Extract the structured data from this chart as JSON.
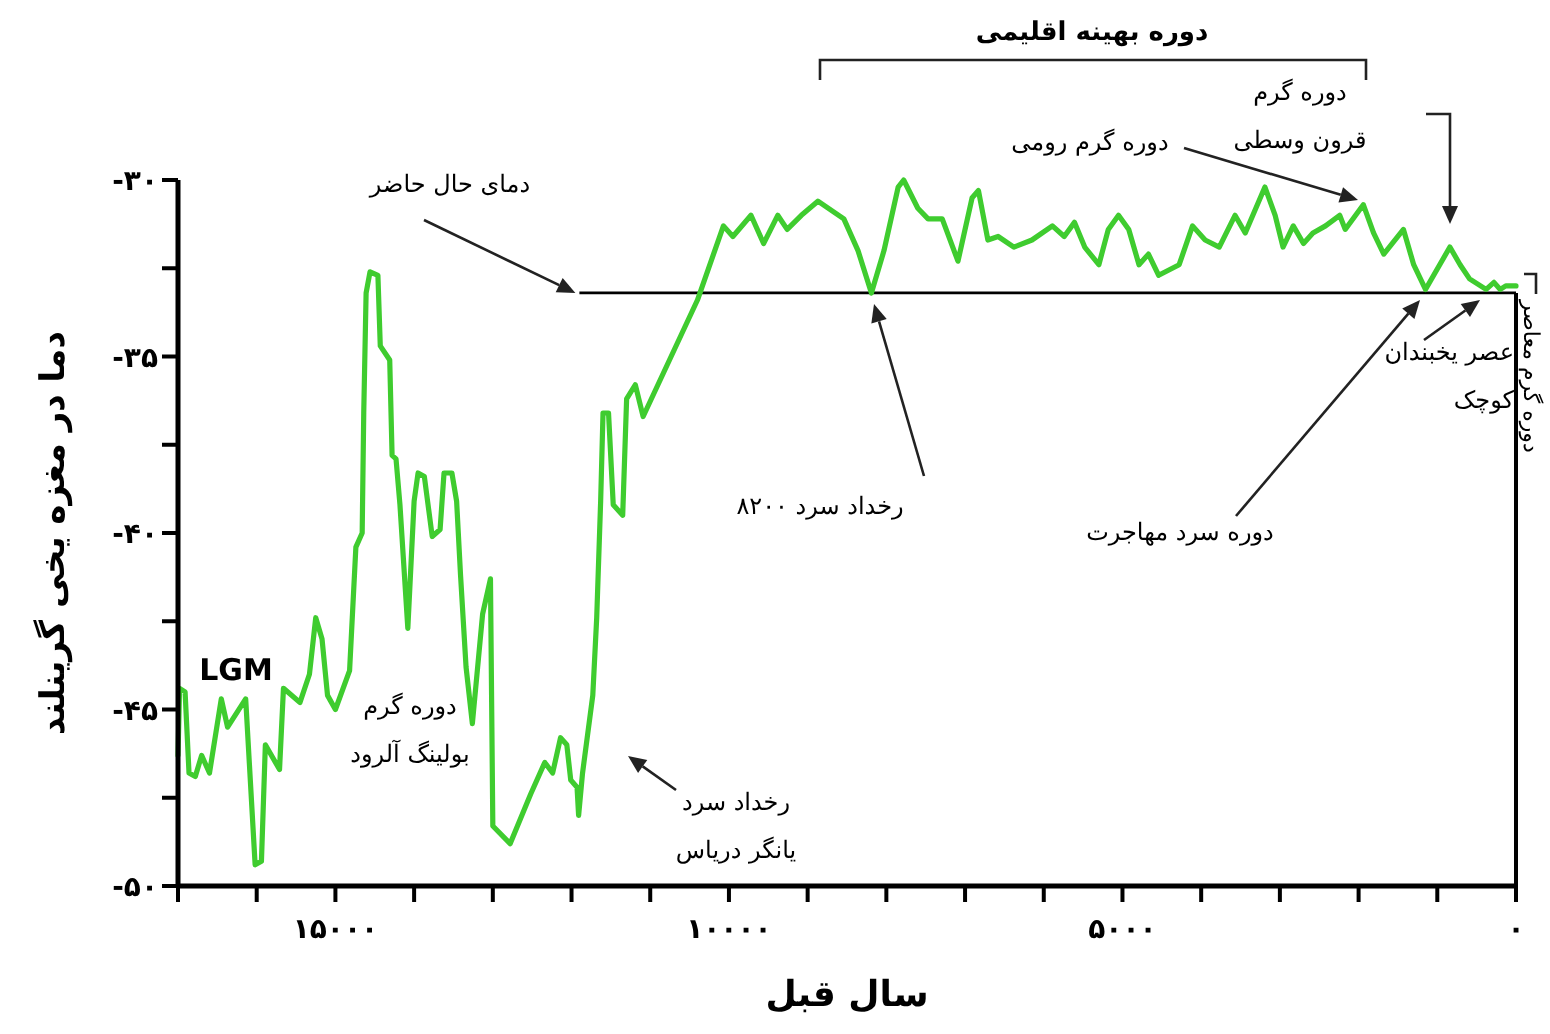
{
  "chart_data": {
    "type": "line",
    "xlabel": "سال قبل",
    "ylabel": "دما در مغزه یخی گرینلند",
    "xlim": [
      17000,
      0
    ],
    "ylim": [
      -50,
      -30
    ],
    "xticks": [
      {
        "value": 17000,
        "label": null
      },
      {
        "value": 16000,
        "label": null
      },
      {
        "value": 15000,
        "label": "۱۵۰۰۰"
      },
      {
        "value": 14000,
        "label": null
      },
      {
        "value": 13000,
        "label": null
      },
      {
        "value": 12000,
        "label": null
      },
      {
        "value": 11000,
        "label": null
      },
      {
        "value": 10000,
        "label": "۱۰۰۰۰"
      },
      {
        "value": 9000,
        "label": null
      },
      {
        "value": 8000,
        "label": null
      },
      {
        "value": 7000,
        "label": null
      },
      {
        "value": 6000,
        "label": null
      },
      {
        "value": 5000,
        "label": "۵۰۰۰"
      },
      {
        "value": 4000,
        "label": null
      },
      {
        "value": 3000,
        "label": null
      },
      {
        "value": 2000,
        "label": null
      },
      {
        "value": 1000,
        "label": null
      },
      {
        "value": 0,
        "label": "۰"
      }
    ],
    "yticks": [
      {
        "value": -30,
        "label": "-۳۰"
      },
      {
        "value": -32.5,
        "label": null
      },
      {
        "value": -35,
        "label": "-۳۵"
      },
      {
        "value": -37.5,
        "label": null
      },
      {
        "value": -40,
        "label": "-۴۰"
      },
      {
        "value": -42.5,
        "label": null
      },
      {
        "value": -45,
        "label": "-۴۵"
      },
      {
        "value": -47.5,
        "label": null
      },
      {
        "value": -50,
        "label": "-۵۰"
      }
    ],
    "grid": false,
    "marker": "none",
    "line_style": "solid",
    "ref_lines": [
      {
        "axis": "y",
        "value": -33.2,
        "label": "دمای حال حاضر",
        "color": "#000000"
      }
    ],
    "annotations": [
      "LGM",
      "دوره گرم\nبولینگ آلرود",
      "رخداد سرد\nیانگر دریاس",
      "رخداد سرد ۸۲۰۰",
      "دوره گرم رومی",
      "دوره گرم\nقرون وسطی",
      "دوره سرد مهاجرت",
      "عصر یخبندان\nکوچک",
      "دوره بهینه اقلیمی",
      "دوره گرم معاصر"
    ],
    "series": [
      {
        "color": "#3fcc2f",
        "x": [
          17000,
          16980,
          16910,
          16860,
          16780,
          16700,
          16600,
          16450,
          16370,
          16140,
          16020,
          15940,
          15890,
          15710,
          15660,
          15450,
          15330,
          15250,
          15170,
          15100,
          15000,
          14820,
          14740,
          14660,
          14640,
          14610,
          14560,
          14460,
          14430,
          14310,
          14280,
          14230,
          14180,
          14080,
          14000,
          13950,
          13870,
          13770,
          13670,
          13620,
          13520,
          13460,
          13410,
          13340,
          13260,
          13130,
          13030,
          13000,
          12780,
          12520,
          12340,
          12240,
          12140,
          12060,
          12010,
          11930,
          11910,
          11860,
          11730,
          11680,
          11630,
          11600,
          11530,
          11470,
          11350,
          11300,
          11190,
          11090,
          10400,
          10070,
          9950,
          9720,
          9560,
          9380,
          9260,
          9080,
          8870,
          8540,
          8360,
          8190,
          8030,
          7850,
          7780,
          7600,
          7470,
          7290,
          7090,
          6910,
          6830,
          6710,
          6580,
          6380,
          6150,
          5890,
          5740,
          5610,
          5480,
          5300,
          5180,
          5050,
          4920,
          4790,
          4670,
          4540,
          4280,
          4110,
          3950,
          3770,
          3570,
          3440,
          3190,
          3060,
          2960,
          2830,
          2700,
          2580,
          2420,
          2240,
          2170,
          1940,
          1810,
          1680,
          1430,
          1300,
          1150,
          840,
          710,
          590,
          380,
          280,
          200,
          130,
          0
        ],
        "values": [
          -46.3,
          -44.4,
          -44.5,
          -46.8,
          -46.9,
          -46.3,
          -46.8,
          -44.7,
          -45.5,
          -44.7,
          -49.4,
          -49.3,
          -46.0,
          -46.7,
          -44.4,
          -44.8,
          -44.0,
          -42.4,
          -43.0,
          -44.6,
          -45.0,
          -43.9,
          -40.4,
          -40.0,
          -36.6,
          -33.2,
          -32.6,
          -32.7,
          -34.7,
          -35.1,
          -37.8,
          -37.9,
          -39.2,
          -42.7,
          -39.1,
          -38.3,
          -38.4,
          -40.1,
          -39.9,
          -38.3,
          -38.3,
          -39.1,
          -41.2,
          -43.8,
          -45.4,
          -42.3,
          -41.3,
          -48.3,
          -48.8,
          -47.4,
          -46.5,
          -46.8,
          -45.8,
          -46.0,
          -47.0,
          -47.2,
          -48.0,
          -46.8,
          -44.6,
          -42.4,
          -39.1,
          -36.6,
          -36.6,
          -39.2,
          -39.5,
          -36.2,
          -35.8,
          -36.7,
          -33.4,
          -31.3,
          -31.6,
          -31.0,
          -31.8,
          -31.0,
          -31.4,
          -31.0,
          -30.6,
          -31.1,
          -32.0,
          -33.2,
          -32.0,
          -30.2,
          -30.0,
          -30.8,
          -31.1,
          -31.1,
          -32.3,
          -30.5,
          -30.3,
          -31.7,
          -31.6,
          -31.9,
          -31.7,
          -31.3,
          -31.6,
          -31.2,
          -31.9,
          -32.4,
          -31.4,
          -31.0,
          -31.4,
          -32.4,
          -32.1,
          -32.7,
          -32.4,
          -31.3,
          -31.7,
          -31.9,
          -31.0,
          -31.5,
          -30.2,
          -31.0,
          -31.9,
          -31.3,
          -31.8,
          -31.5,
          -31.3,
          -31.0,
          -31.4,
          -30.7,
          -31.5,
          -32.1,
          -31.4,
          -32.4,
          -33.1,
          -31.9,
          -32.4,
          -32.8,
          -33.1,
          -32.9,
          -33.1,
          -33.0,
          -33.0
        ]
      }
    ]
  }
}
